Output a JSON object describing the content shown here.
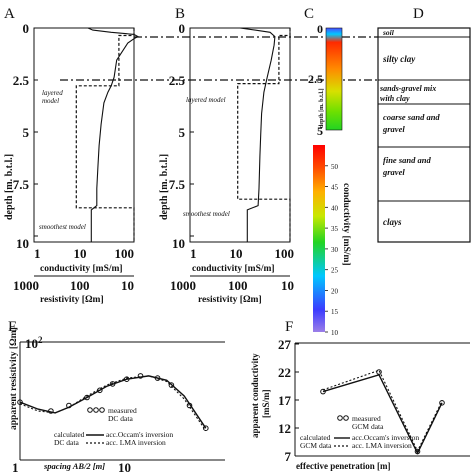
{
  "panels": {
    "a": {
      "label": "A",
      "model_layered": "layered\nmodel",
      "model_smooth": "smoothest model"
    },
    "b": {
      "label": "B",
      "model_layered": "layered model",
      "model_smooth": "smoothest model"
    },
    "c": {
      "label": "C",
      "y_axis_label": "depth [m. b.t.l.]",
      "ticks": [
        "0",
        "2.5",
        "5"
      ]
    },
    "d": {
      "label": "D"
    },
    "e": {
      "label": "E"
    },
    "f": {
      "label": "F"
    }
  },
  "ab_axes": {
    "depth_label": "depth [m. b.t.l.]",
    "depth_ticks": [
      "0",
      "2.5",
      "5",
      "7.5",
      "10"
    ],
    "conductivity_label": "conductivity [mS/m]",
    "conductivity_ticks": [
      "1",
      "10",
      "100"
    ],
    "resistivity_label": "resistivity [Ωm]",
    "resistivity_ticks": [
      "1000",
      "100",
      "10"
    ]
  },
  "lithology": [
    {
      "label": "soil",
      "from_m": 0.0,
      "to_m": 0.4
    },
    {
      "label": "silty clay",
      "from_m": 0.4,
      "to_m": 2.5
    },
    {
      "label": "sands-gravel mix with clay",
      "from_m": 2.5,
      "to_m": 3.3
    },
    {
      "label": "coarse sand and gravel",
      "from_m": 3.3,
      "to_m": 5.5
    },
    {
      "label": "fine sand and gravel",
      "from_m": 5.5,
      "to_m": 8.0
    },
    {
      "label": "clays",
      "from_m": 8.0,
      "to_m": 10.0
    }
  ],
  "colorbar": {
    "label": "conductivity [mS/m]",
    "ticks": [
      "10",
      "15",
      "20",
      "25",
      "30",
      "35",
      "40",
      "45",
      "50"
    ],
    "range": [
      10,
      55
    ]
  },
  "chart_data": [
    {
      "panel": "A",
      "type": "line",
      "xscale": "log",
      "xlabel": "conductivity [mS/m]",
      "x2label": "resistivity [Ωm]",
      "ylabel": "depth [m. b.t.l.]",
      "xlim": [
        1,
        100
      ],
      "ylim": [
        10,
        0
      ],
      "series": [
        {
          "name": "layered model",
          "points": [
            [
              100,
              0
            ],
            [
              100,
              0.35
            ],
            [
              50,
              0.35
            ],
            [
              50,
              2.7
            ],
            [
              7,
              2.7
            ],
            [
              7,
              8.4
            ],
            [
              100,
              8.4
            ],
            [
              100,
              10
            ]
          ]
        },
        {
          "name": "smoothest model",
          "points": [
            [
              12,
              0
            ],
            [
              15,
              0.1
            ],
            [
              35,
              0.2
            ],
            [
              100,
              0.3
            ],
            [
              120,
              0.4
            ],
            [
              100,
              0.5
            ],
            [
              75,
              0.7
            ],
            [
              45,
              1.5
            ],
            [
              40,
              2.3
            ],
            [
              35,
              2.7
            ],
            [
              30,
              3.0
            ],
            [
              25,
              3.5
            ],
            [
              22,
              4.5
            ],
            [
              20,
              5.5
            ],
            [
              19,
              6.5
            ],
            [
              18,
              7.5
            ],
            [
              18,
              8.3
            ],
            [
              14,
              8.5
            ],
            [
              14,
              10
            ]
          ]
        }
      ]
    },
    {
      "panel": "B",
      "type": "line",
      "xscale": "log",
      "xlabel": "conductivity [mS/m]",
      "x2label": "resistivity [Ωm]",
      "ylabel": "depth [m. b.t.l.]",
      "xlim": [
        1,
        100
      ],
      "ylim": [
        10,
        0
      ],
      "series": [
        {
          "name": "layered model",
          "points": [
            [
              100,
              0
            ],
            [
              100,
              0.35
            ],
            [
              60,
              0.35
            ],
            [
              60,
              2.6
            ],
            [
              9,
              2.6
            ],
            [
              9,
              8.0
            ],
            [
              100,
              8.0
            ],
            [
              100,
              10
            ]
          ]
        },
        {
          "name": "smoothest model",
          "points": [
            [
              10,
              0
            ],
            [
              20,
              0.1
            ],
            [
              40,
              0.2
            ],
            [
              50,
              0.4
            ],
            [
              48,
              0.8
            ],
            [
              42,
              1.5
            ],
            [
              35,
              2.3
            ],
            [
              30,
              3.0
            ],
            [
              27,
              4.0
            ],
            [
              26,
              5.0
            ],
            [
              25,
              6.0
            ],
            [
              24,
              7.5
            ],
            [
              23,
              8.3
            ],
            [
              14,
              8.5
            ],
            [
              14,
              10
            ]
          ]
        }
      ]
    },
    {
      "panel": "E",
      "type": "line",
      "xscale": "log",
      "yscale": "log",
      "xlabel": "spacing AB/2 [m]",
      "ylabel": "apparent resistivity [Ωm]",
      "x_ticks": [
        "1",
        "10"
      ],
      "y_ticks": [
        "10²"
      ],
      "xlim": [
        1,
        100
      ],
      "ylim": [
        15,
        100
      ],
      "series": [
        {
          "name": "measured DC data",
          "points": [
            [
              1,
              38
            ],
            [
              2,
              33
            ],
            [
              3,
              36
            ],
            [
              4.5,
              41
            ],
            [
              6,
              46
            ],
            [
              8,
              51
            ],
            [
              11,
              55
            ],
            [
              15,
              58
            ],
            [
              22,
              56
            ],
            [
              30,
              50
            ],
            [
              45,
              36
            ],
            [
              65,
              25
            ]
          ]
        },
        {
          "name": "calculated DC data",
          "points": [
            [
              1,
              38
            ],
            [
              1.5,
              34
            ],
            [
              2.2,
              32
            ],
            [
              3,
              35
            ],
            [
              4.5,
              41
            ],
            [
              7,
              49
            ],
            [
              11,
              55
            ],
            [
              18,
              58
            ],
            [
              27,
              54
            ],
            [
              40,
              42
            ],
            [
              65,
              25
            ]
          ]
        },
        {
          "name": "acc. LMA inversion",
          "points": [
            [
              1,
              37
            ],
            [
              1.5,
              33
            ],
            [
              2.2,
              32
            ],
            [
              3,
              35
            ],
            [
              4.5,
              42
            ],
            [
              7,
              50
            ],
            [
              11,
              56
            ],
            [
              18,
              58
            ],
            [
              27,
              53
            ],
            [
              40,
              40
            ],
            [
              65,
              24
            ]
          ]
        }
      ],
      "legend": [
        "measured",
        "DC data",
        "calculated",
        "acc.Occam's inversion",
        "DC data",
        "acc. LMA inversion"
      ]
    },
    {
      "panel": "F",
      "type": "line",
      "xlabel": "effective penetration [m]",
      "ylabel": "apparent conductivity [mS/m]",
      "y_ticks": [
        "7",
        "12",
        "17",
        "22",
        "27"
      ],
      "ylim": [
        7,
        27
      ],
      "series": [
        {
          "name": "measured GCM data",
          "points": [
            [
              0.8,
              18.5
            ],
            [
              2.4,
              22.0
            ],
            [
              3.5,
              7.8
            ],
            [
              4.2,
              16.5
            ]
          ]
        },
        {
          "name": "calculated GCM data",
          "points": [
            [
              0.8,
              18.5
            ],
            [
              2.4,
              21.5
            ],
            [
              3.5,
              7.5
            ],
            [
              4.2,
              16.5
            ]
          ]
        },
        {
          "name": "acc. LMA inversion",
          "points": [
            [
              0.8,
              18.8
            ],
            [
              2.4,
              22.3
            ],
            [
              3.5,
              7.9
            ],
            [
              4.2,
              16.8
            ]
          ]
        }
      ],
      "legend": [
        "measured",
        "GCM data",
        "calculated",
        "acc.Occam's inversion",
        "GCM data",
        "acc. LMA inversion"
      ]
    }
  ]
}
